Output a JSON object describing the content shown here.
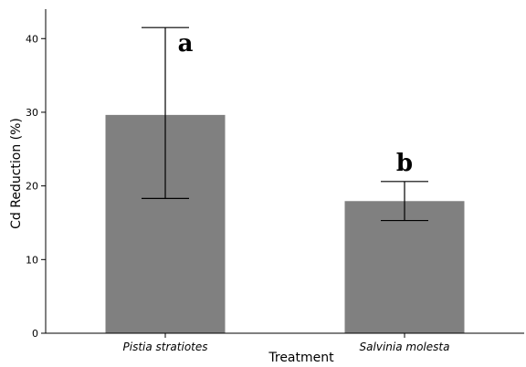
{
  "chart_data": {
    "type": "bar",
    "categories": [
      "Pistia stratiotes",
      "Salvinia molesta"
    ],
    "values": [
      29.7,
      18.0
    ],
    "error_bars": [
      {
        "low": 18.3,
        "high": 41.5
      },
      {
        "low": 15.3,
        "high": 20.6
      }
    ],
    "annotations": [
      "a",
      "b"
    ],
    "title": "",
    "xlabel": "Treatment",
    "ylabel": "Cd Reduction (%)",
    "ylim": [
      0,
      44
    ],
    "yticks": [
      0,
      10,
      20,
      30,
      40
    ],
    "bar_color": "#808080",
    "grid": false
  }
}
